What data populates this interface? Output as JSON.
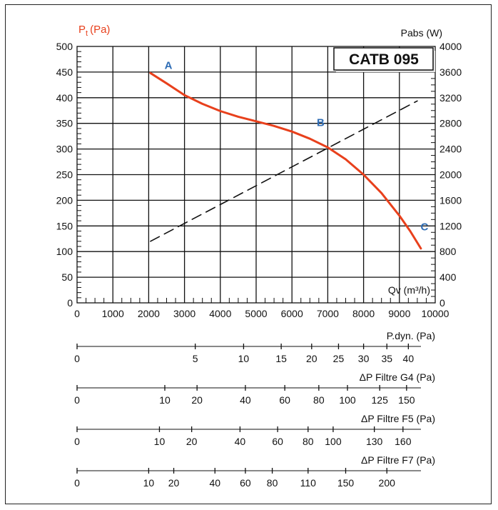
{
  "chart_data": {
    "type": "line",
    "model": "CATB 095",
    "x_axis": {
      "label": "Qv (m³/h)",
      "range": [
        0,
        10000
      ],
      "ticks": [
        0,
        1000,
        2000,
        3000,
        4000,
        5000,
        6000,
        7000,
        8000,
        9000,
        10000
      ]
    },
    "y_left": {
      "label_main": "P",
      "label_sub": "t",
      "label_unit": "(Pa)",
      "range": [
        0,
        500
      ],
      "ticks": [
        0,
        50,
        100,
        150,
        200,
        250,
        300,
        350,
        400,
        450,
        500
      ]
    },
    "y_right": {
      "label": "Pabs (W)",
      "range": [
        0,
        4000
      ],
      "ticks": [
        0,
        400,
        800,
        1200,
        1600,
        2000,
        2400,
        2800,
        3200,
        3600,
        4000
      ]
    },
    "grid": true,
    "series": [
      {
        "axis": "left",
        "color": "#e8401c",
        "style": "solid",
        "points": [
          [
            2050,
            448
          ],
          [
            2500,
            428
          ],
          [
            3000,
            405
          ],
          [
            3500,
            388
          ],
          [
            4000,
            374
          ],
          [
            4500,
            363
          ],
          [
            5000,
            354
          ],
          [
            5500,
            345
          ],
          [
            6000,
            334
          ],
          [
            6500,
            320
          ],
          [
            7000,
            303
          ],
          [
            7500,
            280
          ],
          [
            8000,
            250
          ],
          [
            8500,
            214
          ],
          [
            9000,
            170
          ],
          [
            9300,
            140
          ],
          [
            9600,
            106
          ]
        ]
      },
      {
        "axis": "right",
        "color": "#111111",
        "style": "dashed",
        "points": [
          [
            2050,
            960
          ],
          [
            9500,
            3150
          ]
        ]
      }
    ],
    "operating_points": [
      {
        "label": "A",
        "x": 2550,
        "y": 463
      },
      {
        "label": "B",
        "x": 6800,
        "y": 352
      },
      {
        "label": "C",
        "x": 9700,
        "y": 148
      }
    ],
    "secondary_scales": [
      {
        "title": "P.dyn. (Pa)",
        "marks": [
          {
            "label": "0",
            "q": 0
          },
          {
            "label": "5",
            "q": 3300
          },
          {
            "label": "10",
            "q": 4650
          },
          {
            "label": "15",
            "q": 5700
          },
          {
            "label": "20",
            "q": 6550
          },
          {
            "label": "25",
            "q": 7300
          },
          {
            "label": "30",
            "q": 8000
          },
          {
            "label": "35",
            "q": 8650
          },
          {
            "label": "40",
            "q": 9250
          }
        ]
      },
      {
        "title": "ΔP Filtre G4 (Pa)",
        "marks": [
          {
            "label": "0",
            "q": 0
          },
          {
            "label": "10",
            "q": 2450
          },
          {
            "label": "20",
            "q": 3350
          },
          {
            "label": "40",
            "q": 4700
          },
          {
            "label": "60",
            "q": 5800
          },
          {
            "label": "80",
            "q": 6750
          },
          {
            "label": "100",
            "q": 7550
          },
          {
            "label": "125",
            "q": 8450
          },
          {
            "label": "150",
            "q": 9200
          }
        ]
      },
      {
        "title": "ΔP Filtre F5 (Pa)",
        "marks": [
          {
            "label": "0",
            "q": 0
          },
          {
            "label": "10",
            "q": 2300
          },
          {
            "label": "20",
            "q": 3200
          },
          {
            "label": "40",
            "q": 4550
          },
          {
            "label": "60",
            "q": 5600
          },
          {
            "label": "80",
            "q": 6450
          },
          {
            "label": "100",
            "q": 7150
          },
          {
            "label": "130",
            "q": 8300
          },
          {
            "label": "160",
            "q": 9100
          }
        ]
      },
      {
        "title": "ΔP Filtre F7 (Pa)",
        "marks": [
          {
            "label": "0",
            "q": 0
          },
          {
            "label": "10",
            "q": 2000
          },
          {
            "label": "20",
            "q": 2700
          },
          {
            "label": "40",
            "q": 3850
          },
          {
            "label": "60",
            "q": 4700
          },
          {
            "label": "80",
            "q": 5450
          },
          {
            "label": "110",
            "q": 6450
          },
          {
            "label": "150",
            "q": 7500
          },
          {
            "label": "200",
            "q": 8650
          }
        ]
      }
    ]
  }
}
